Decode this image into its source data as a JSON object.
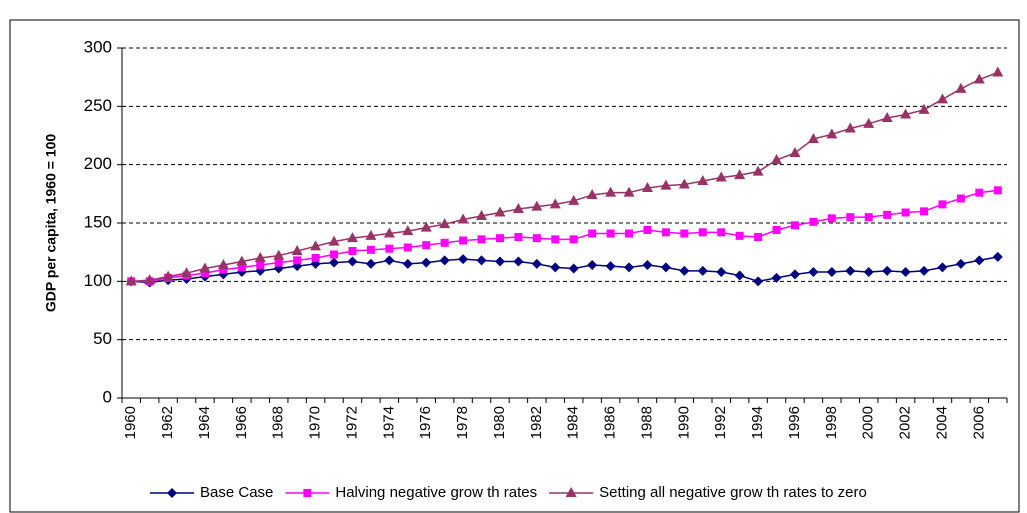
{
  "chart_data": {
    "type": "line",
    "y_label": "GDP per capita, 1960 = 100",
    "categories": [
      "1960",
      null,
      "1962",
      null,
      "1964",
      null,
      "1966",
      null,
      "1968",
      null,
      "1970",
      null,
      "1972",
      null,
      "1974",
      null,
      "1976",
      null,
      "1978",
      null,
      "1980",
      null,
      "1982",
      null,
      "1984",
      null,
      "1986",
      null,
      "1988",
      null,
      "1990",
      null,
      "1992",
      null,
      "1994",
      null,
      "1996",
      null,
      "1998",
      null,
      "2000",
      null,
      "2002",
      null,
      "2004",
      null,
      "2006",
      null
    ],
    "series": [
      {
        "name": "Base Case",
        "color": "#000080",
        "marker": "diamond",
        "values": [
          100,
          99,
          101,
          102,
          104,
          106,
          108,
          109,
          111,
          113,
          115,
          116,
          117,
          115,
          118,
          115,
          116,
          118,
          119,
          118,
          117,
          117,
          115,
          112,
          111,
          114,
          113,
          112,
          114,
          112,
          109,
          109,
          108,
          105,
          100,
          103,
          106,
          108,
          108,
          109,
          108,
          109,
          108,
          109,
          112,
          115,
          118,
          121
        ]
      },
      {
        "name": "Halving negative grow th rates",
        "color": "#ff00ff",
        "marker": "square",
        "values": [
          100,
          100,
          103,
          105,
          107,
          110,
          112,
          114,
          116,
          118,
          120,
          123,
          126,
          127,
          128,
          129,
          131,
          133,
          135,
          136,
          137,
          138,
          137,
          136,
          136,
          141,
          141,
          141,
          144,
          142,
          141,
          142,
          142,
          139,
          138,
          144,
          148,
          151,
          154,
          155,
          155,
          157,
          159,
          160,
          166,
          171,
          176,
          178
        ]
      },
      {
        "name": "Setting all negative grow th rates to zero",
        "color": "#993366",
        "marker": "triangle",
        "values": [
          100,
          101,
          104,
          107,
          111,
          114,
          117,
          120,
          122,
          126,
          130,
          134,
          137,
          139,
          141,
          143,
          146,
          149,
          153,
          156,
          159,
          162,
          164,
          166,
          169,
          174,
          176,
          176,
          180,
          182,
          183,
          186,
          189,
          191,
          194,
          204,
          210,
          222,
          226,
          231,
          235,
          240,
          243,
          247,
          256,
          265,
          273,
          279
        ]
      }
    ],
    "ylim": [
      0,
      300
    ],
    "yticks": [
      0,
      50,
      100,
      150,
      200,
      250,
      300
    ],
    "grid": true
  }
}
